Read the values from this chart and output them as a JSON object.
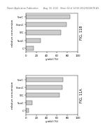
{
  "fig11b": {
    "title": "FIG. 11B",
    "categories": [
      "5caC",
      "5fC",
      "5hmC",
      "5mC",
      "C"
    ],
    "values": [
      28,
      68,
      78,
      85,
      15
    ],
    "bar_color": "#cccccc",
    "bar_edge_color": "#444444",
    "xlabel": "yield (%)",
    "ylabel": "relative conversion",
    "xlim": [
      0,
      100
    ],
    "xticks": [
      0,
      20,
      40,
      60,
      80,
      100
    ]
  },
  "fig11a": {
    "title": "FIG. 11A",
    "categories": [
      "5caC",
      "5fC",
      "5hmC",
      "5mC",
      "C"
    ],
    "values": [
      12,
      65,
      70,
      72,
      5
    ],
    "bar_color": "#cccccc",
    "bar_edge_color": "#444444",
    "xlabel": "yield (%)",
    "ylabel": "relative conversion",
    "xlim": [
      0,
      100
    ],
    "xticks": [
      0,
      20,
      40,
      60,
      80,
      100
    ]
  },
  "header": {
    "left": "Patent Application Publication",
    "mid1": "Aug. 30, 2012",
    "mid2": "Sheet 14 of 14",
    "right": "US 2012/0214678 A1"
  },
  "background_color": "#ffffff",
  "ylabel_fontsize": 3.0,
  "xlabel_fontsize": 3.0,
  "title_fontsize": 3.5,
  "tick_fontsize": 2.8,
  "bar_height": 0.55,
  "header_fontsize": 2.2
}
